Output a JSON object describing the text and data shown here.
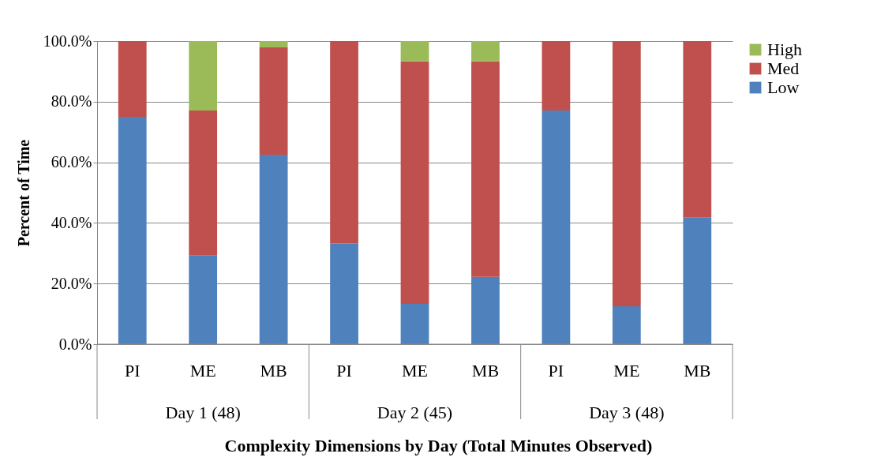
{
  "chart_data": {
    "type": "bar",
    "stacked": true,
    "categories": [
      "PI",
      "ME",
      "MB",
      "PI",
      "ME",
      "MB",
      "PI",
      "ME",
      "MB"
    ],
    "annotations": [
      "Day 1 (48)",
      "Day 2 (45)",
      "Day 3 (48)"
    ],
    "xlabel": "Complexity Dimensions by Day (Total Minutes Observed)",
    "ylabel": "Percent of Time",
    "series": [
      {
        "name": "Low",
        "color": "#4f81bd",
        "values": [
          75.0,
          29.2,
          62.5,
          33.3,
          13.3,
          22.2,
          77.1,
          12.5,
          41.7
        ]
      },
      {
        "name": "Med",
        "color": "#c0504d",
        "values": [
          25.0,
          47.9,
          35.4,
          66.7,
          80.0,
          71.1,
          22.9,
          87.5,
          58.3
        ]
      },
      {
        "name": "High",
        "color": "#9bbb59",
        "values": [
          0,
          22.9,
          2.1,
          0,
          6.7,
          6.7,
          0,
          0,
          0
        ]
      }
    ],
    "ylim": [
      0,
      100
    ],
    "yticks": [
      {
        "value": 0,
        "label": "0.0%"
      },
      {
        "value": 20,
        "label": "20.0%"
      },
      {
        "value": 40,
        "label": "40.0%"
      },
      {
        "value": 60,
        "label": "60.0%"
      },
      {
        "value": 80,
        "label": "80.0%"
      },
      {
        "value": 100,
        "label": "100.0%"
      }
    ],
    "grid": "y",
    "legend": "right"
  }
}
